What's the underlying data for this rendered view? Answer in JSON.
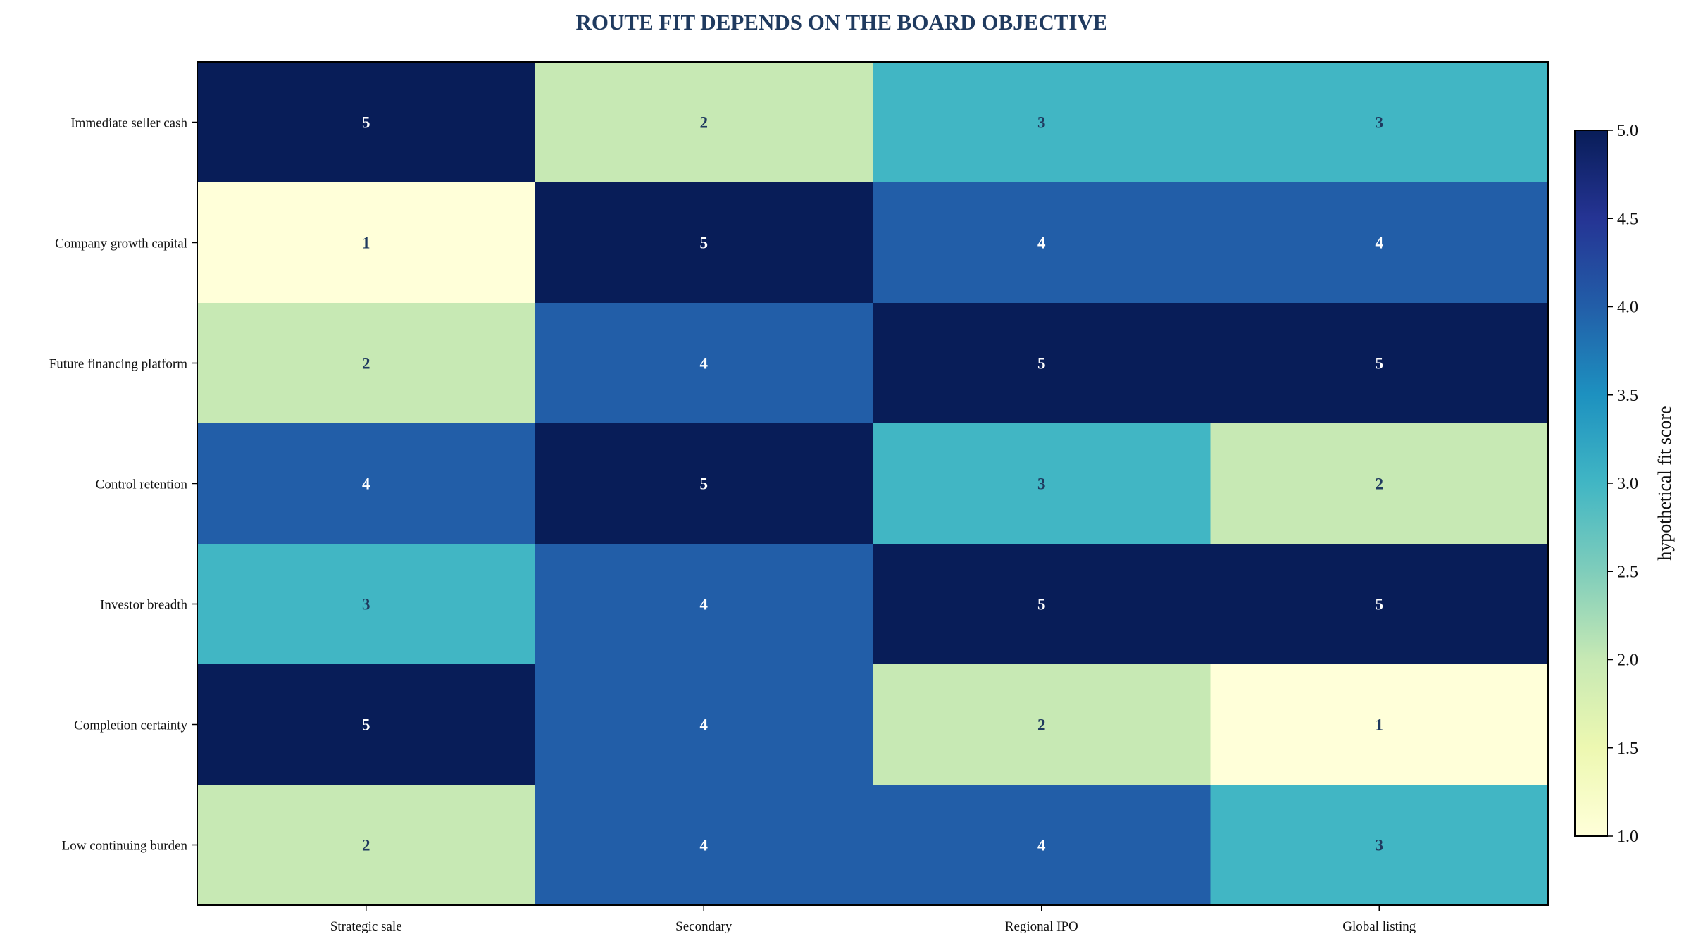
{
  "chart_data": {
    "type": "heatmap",
    "title": "ROUTE FIT DEPENDS ON THE BOARD OBJECTIVE",
    "columns": [
      "Strategic sale",
      "Secondary",
      "Regional IPO",
      "Global listing"
    ],
    "rows": [
      "Immediate seller cash",
      "Company growth capital",
      "Future financing platform",
      "Control retention",
      "Investor breadth",
      "Completion certainty",
      "Low continuing burden"
    ],
    "values": [
      [
        5,
        2,
        3,
        3
      ],
      [
        1,
        5,
        4,
        4
      ],
      [
        2,
        4,
        5,
        5
      ],
      [
        4,
        5,
        3,
        2
      ],
      [
        3,
        4,
        5,
        5
      ],
      [
        5,
        4,
        2,
        1
      ],
      [
        2,
        4,
        4,
        3
      ]
    ],
    "value_labels": [
      [
        "5",
        "2",
        "3",
        "3"
      ],
      [
        "1",
        "5",
        "4",
        "4"
      ],
      [
        "2",
        "4",
        "5",
        "5"
      ],
      [
        "4",
        "5",
        "3",
        "2"
      ],
      [
        "3",
        "4",
        "5",
        "5"
      ],
      [
        "5",
        "4",
        "2",
        "1"
      ],
      [
        "2",
        "4",
        "4",
        "3"
      ]
    ],
    "colorscale": "YlGnBu",
    "vmin": 1,
    "vmax": 5,
    "colorbar": {
      "label": "hypothetical fit score",
      "ticks": [
        1.0,
        1.5,
        2.0,
        2.5,
        3.0,
        3.5,
        4.0,
        4.5,
        5.0
      ],
      "tick_labels": [
        "1.0",
        "1.5",
        "2.0",
        "2.5",
        "3.0",
        "3.5",
        "4.0",
        "4.5",
        "5.0"
      ],
      "placement": "right"
    },
    "colors": {
      "title": "#1f3a5f",
      "label_on_dark": "#ffffff",
      "label_on_light": "#1f3a5f"
    }
  }
}
